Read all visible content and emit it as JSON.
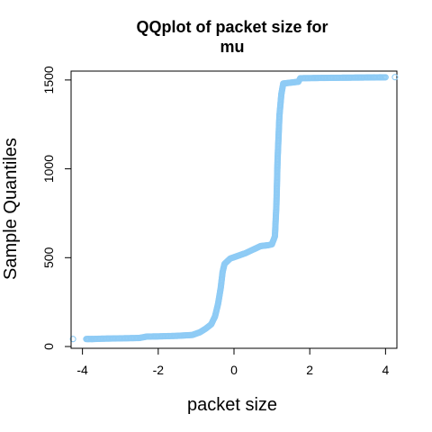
{
  "chart_data": {
    "type": "scatter",
    "title": "QQplot of packet size for mu",
    "title_lines": [
      "QQplot of packet size for",
      "mu"
    ],
    "xlabel": "packet size",
    "ylabel": "Sample Quantiles",
    "xlim": [
      -4.3,
      4.3
    ],
    "ylim": [
      -10,
      1550
    ],
    "xticks": [
      -4,
      -2,
      0,
      2,
      4
    ],
    "xtick_labels": [
      "-4",
      "-2",
      "0",
      "2",
      "4"
    ],
    "yticks": [
      0,
      500,
      1000,
      1500
    ],
    "ytick_labels": [
      "0",
      "500",
      "1000",
      "1500"
    ],
    "grid": false,
    "marker": "open-circle",
    "color": "#8ecbf5",
    "curve": [
      [
        -4.25,
        42
      ],
      [
        -3.9,
        42
      ],
      [
        -3.75,
        42
      ],
      [
        -3.5,
        44
      ],
      [
        -3.0,
        46
      ],
      [
        -2.5,
        48
      ],
      [
        -2.3,
        56
      ],
      [
        -2.0,
        57
      ],
      [
        -1.5,
        60
      ],
      [
        -1.1,
        65
      ],
      [
        -0.9,
        80
      ],
      [
        -0.75,
        100
      ],
      [
        -0.6,
        125
      ],
      [
        -0.5,
        170
      ],
      [
        -0.42,
        240
      ],
      [
        -0.35,
        330
      ],
      [
        -0.3,
        420
      ],
      [
        -0.25,
        465
      ],
      [
        -0.1,
        495
      ],
      [
        0.1,
        510
      ],
      [
        0.3,
        525
      ],
      [
        0.5,
        545
      ],
      [
        0.7,
        565
      ],
      [
        0.9,
        570
      ],
      [
        1.0,
        575
      ],
      [
        1.08,
        620
      ],
      [
        1.12,
        800
      ],
      [
        1.15,
        1050
      ],
      [
        1.2,
        1300
      ],
      [
        1.25,
        1420
      ],
      [
        1.3,
        1480
      ],
      [
        1.5,
        1485
      ],
      [
        1.7,
        1490
      ],
      [
        1.75,
        1510
      ],
      [
        2.5,
        1512
      ],
      [
        3.5,
        1514
      ],
      [
        4.0,
        1515
      ],
      [
        4.25,
        1516
      ]
    ]
  }
}
